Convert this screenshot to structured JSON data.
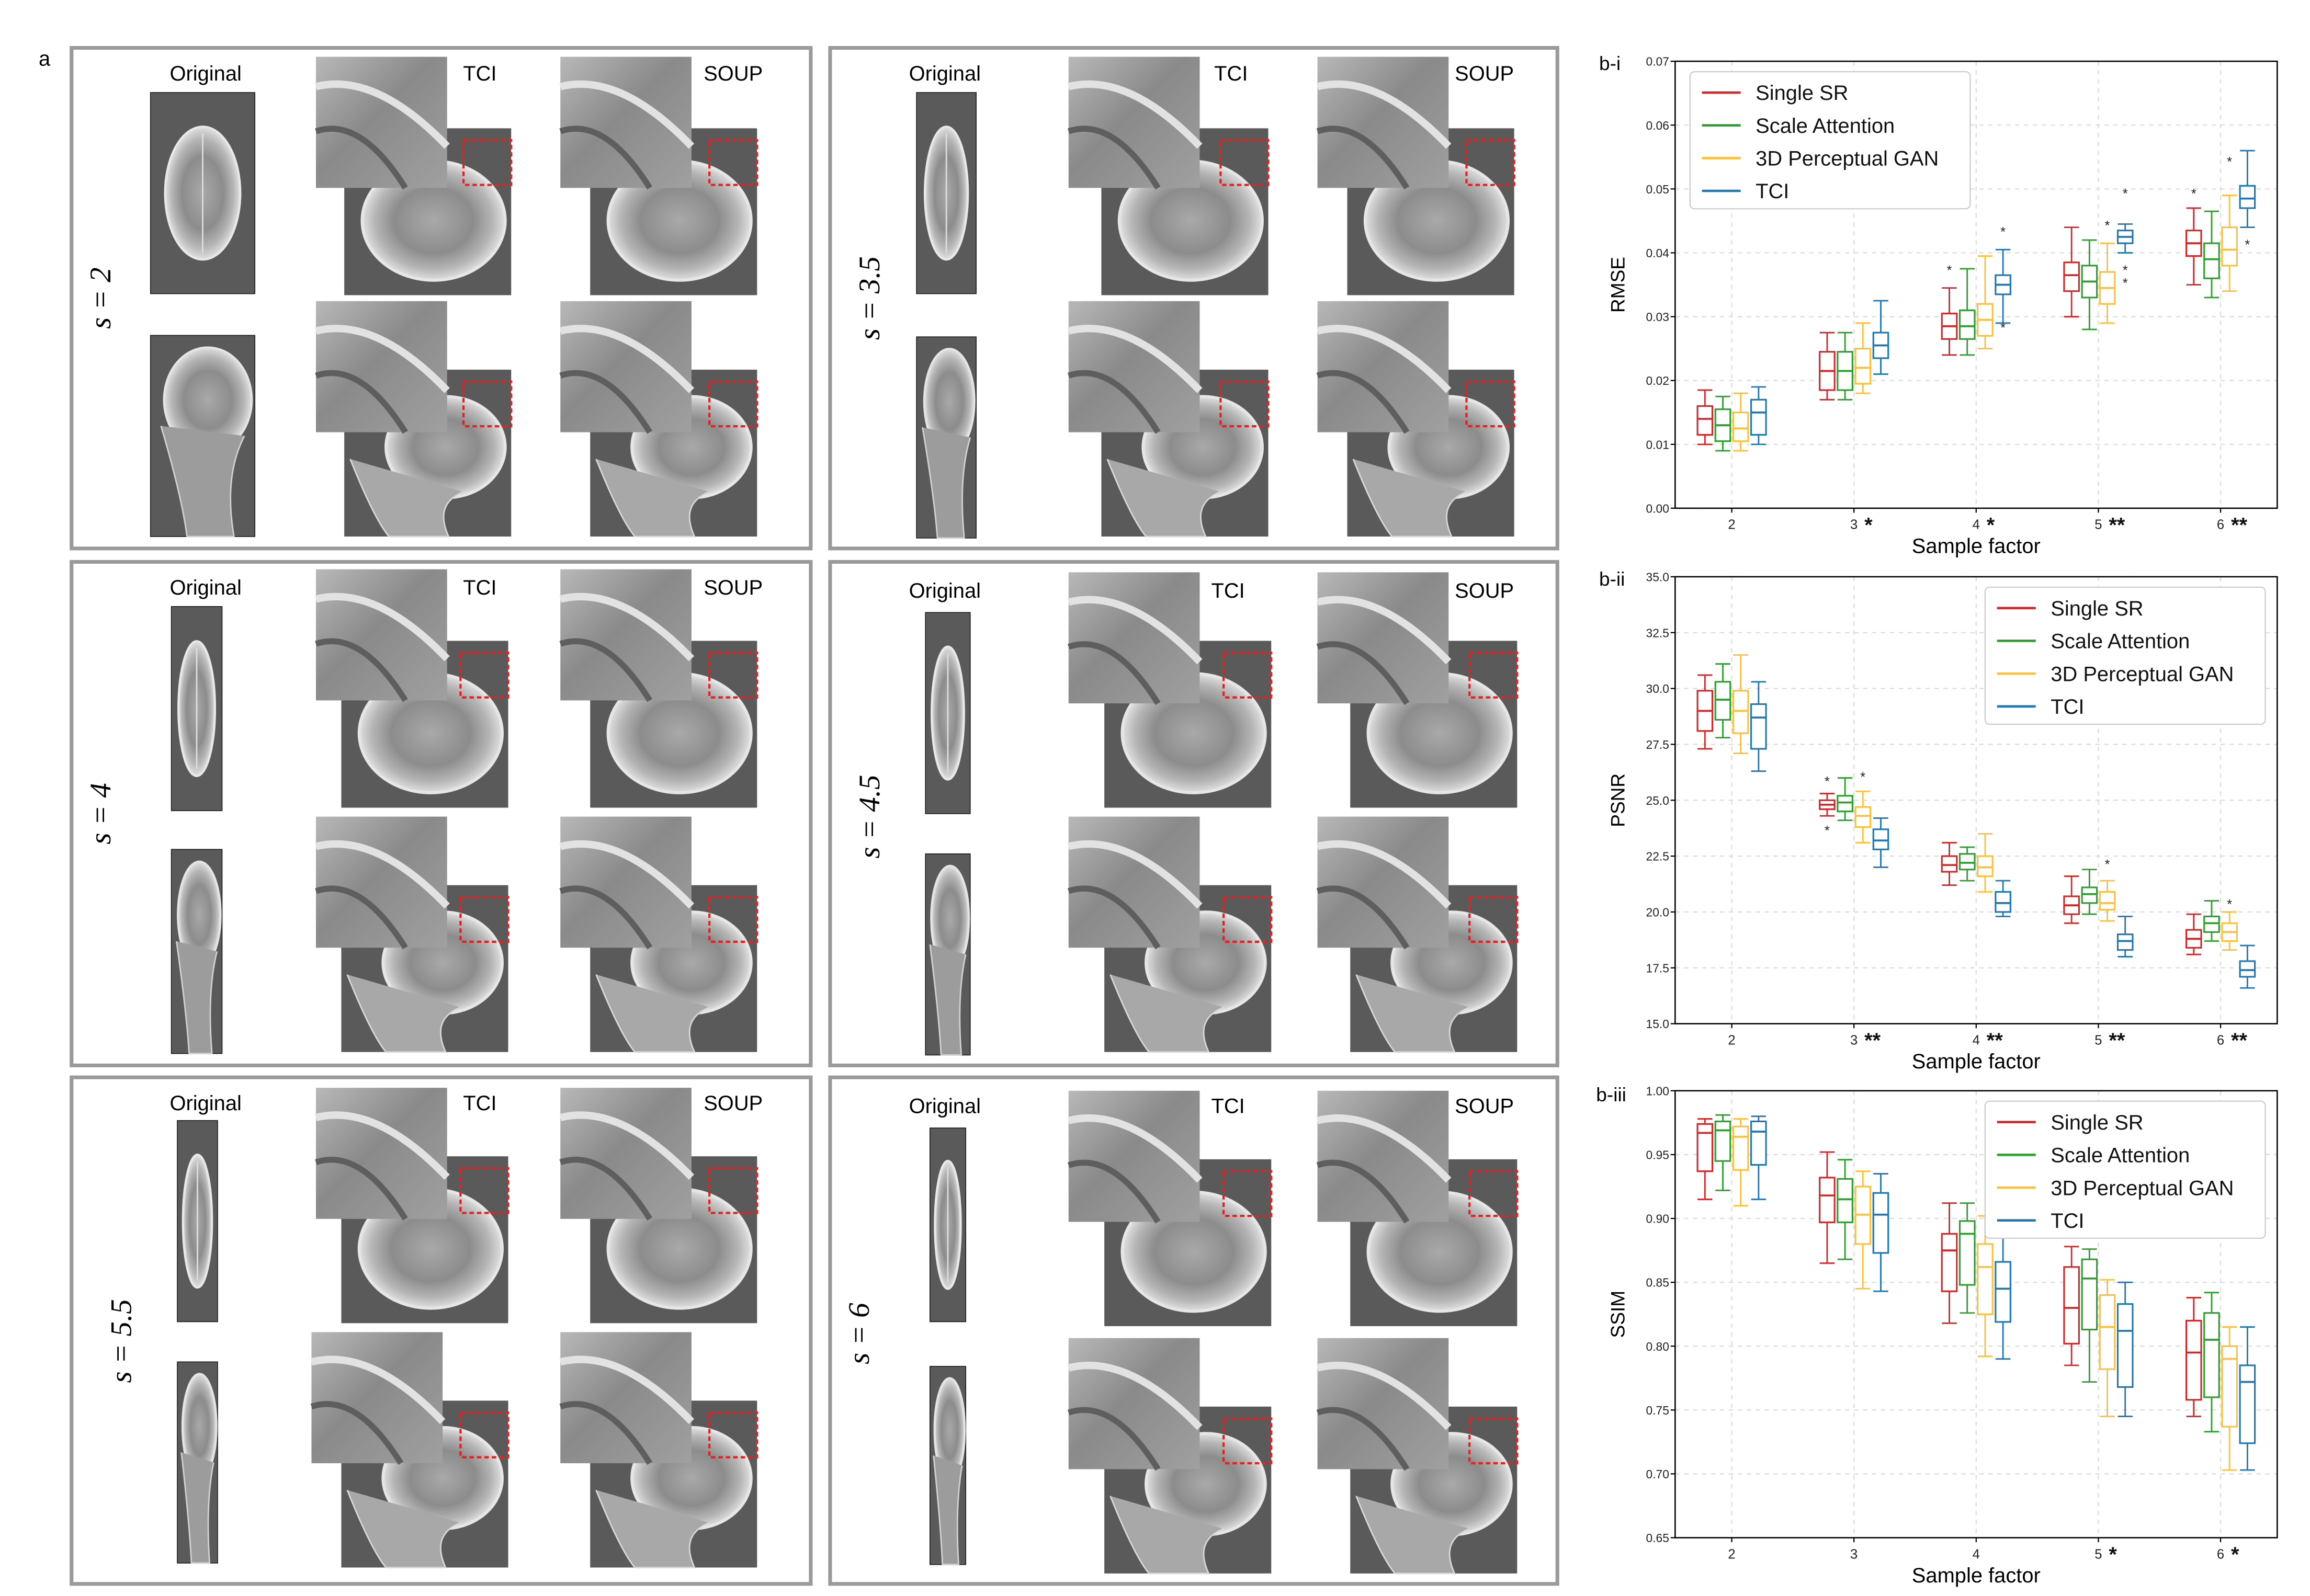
{
  "figure": {
    "panel_a_label": "a",
    "col_labels": {
      "original": "Original",
      "tci": "TCI",
      "soup": "SOUP"
    },
    "scale_prefix": "s = ",
    "scales": [
      "2",
      "3.5",
      "4",
      "4.5",
      "5.5",
      "6"
    ]
  },
  "colors": {
    "single_sr": "#d62728",
    "scale_attention": "#2ca02c",
    "perceptual_gan": "#ffbf3a",
    "tci": "#1f77b4",
    "panel_border": "#9a9a9a",
    "mri_bg": "#5a5a5a",
    "roi_box": "#e82020"
  },
  "chart_data": [
    {
      "panel_label": "b-i",
      "type": "box",
      "title": "",
      "xlabel": "Sample factor",
      "ylabel": "RMSE",
      "categories": [
        "2",
        "3",
        "4",
        "5",
        "6"
      ],
      "significance": [
        "",
        "*",
        "*",
        "**",
        "**"
      ],
      "ylim": [
        0.0,
        0.07
      ],
      "yticks": [
        "0.00",
        "0.01",
        "0.02",
        "0.03",
        "0.04",
        "0.05",
        "0.06",
        "0.07"
      ],
      "legend": [
        "Single SR",
        "Scale Attention",
        "3D Perceptual GAN",
        "TCI"
      ],
      "legend_position": "top-left",
      "series": [
        {
          "name": "Single SR",
          "boxes": [
            {
              "whislo": 0.01,
              "q1": 0.0115,
              "med": 0.014,
              "q3": 0.016,
              "whishi": 0.0185
            },
            {
              "whislo": 0.017,
              "q1": 0.0185,
              "med": 0.0215,
              "q3": 0.0245,
              "whishi": 0.0275
            },
            {
              "whislo": 0.024,
              "q1": 0.0265,
              "med": 0.0285,
              "q3": 0.0305,
              "whishi": 0.0345
            },
            {
              "whislo": 0.03,
              "q1": 0.034,
              "med": 0.0365,
              "q3": 0.0385,
              "whishi": 0.044
            },
            {
              "whislo": 0.035,
              "q1": 0.0395,
              "med": 0.0415,
              "q3": 0.0435,
              "whishi": 0.047
            }
          ]
        },
        {
          "name": "Scale Attention",
          "boxes": [
            {
              "whislo": 0.009,
              "q1": 0.0105,
              "med": 0.013,
              "q3": 0.0155,
              "whishi": 0.0175
            },
            {
              "whislo": 0.017,
              "q1": 0.0185,
              "med": 0.0215,
              "q3": 0.0245,
              "whishi": 0.0275
            },
            {
              "whislo": 0.024,
              "q1": 0.0265,
              "med": 0.0285,
              "q3": 0.031,
              "whishi": 0.0375
            },
            {
              "whislo": 0.028,
              "q1": 0.033,
              "med": 0.0355,
              "q3": 0.038,
              "whishi": 0.042
            },
            {
              "whislo": 0.033,
              "q1": 0.036,
              "med": 0.039,
              "q3": 0.0415,
              "whishi": 0.0465
            }
          ]
        },
        {
          "name": "3D Perceptual GAN",
          "boxes": [
            {
              "whislo": 0.009,
              "q1": 0.0105,
              "med": 0.0125,
              "q3": 0.015,
              "whishi": 0.018
            },
            {
              "whislo": 0.018,
              "q1": 0.0195,
              "med": 0.022,
              "q3": 0.025,
              "whishi": 0.029
            },
            {
              "whislo": 0.025,
              "q1": 0.027,
              "med": 0.0295,
              "q3": 0.032,
              "whishi": 0.0395
            },
            {
              "whislo": 0.029,
              "q1": 0.032,
              "med": 0.0345,
              "q3": 0.037,
              "whishi": 0.0415
            },
            {
              "whislo": 0.034,
              "q1": 0.038,
              "med": 0.0405,
              "q3": 0.044,
              "whishi": 0.049
            }
          ]
        },
        {
          "name": "TCI",
          "boxes": [
            {
              "whislo": 0.01,
              "q1": 0.0115,
              "med": 0.015,
              "q3": 0.017,
              "whishi": 0.019
            },
            {
              "whislo": 0.021,
              "q1": 0.0235,
              "med": 0.0255,
              "q3": 0.0275,
              "whishi": 0.0325
            },
            {
              "whislo": 0.029,
              "q1": 0.0335,
              "med": 0.035,
              "q3": 0.0365,
              "whishi": 0.0405
            },
            {
              "whislo": 0.04,
              "q1": 0.0415,
              "med": 0.0425,
              "q3": 0.0435,
              "whishi": 0.0445
            },
            {
              "whislo": 0.044,
              "q1": 0.047,
              "med": 0.0485,
              "q3": 0.0505,
              "whishi": 0.056
            }
          ]
        }
      ],
      "outliers": [
        {
          "series": 0,
          "cat": 2,
          "value": 0.0375
        },
        {
          "series": 3,
          "cat": 2,
          "value": 0.0435
        },
        {
          "series": 3,
          "cat": 2,
          "value": 0.0285
        },
        {
          "series": 2,
          "cat": 3,
          "value": 0.0445
        },
        {
          "series": 3,
          "cat": 3,
          "value": 0.0495
        },
        {
          "series": 3,
          "cat": 3,
          "value": 0.0375
        },
        {
          "series": 3,
          "cat": 3,
          "value": 0.0355
        },
        {
          "series": 0,
          "cat": 4,
          "value": 0.0495
        },
        {
          "series": 2,
          "cat": 4,
          "value": 0.0545
        },
        {
          "series": 3,
          "cat": 4,
          "value": 0.0415
        }
      ]
    },
    {
      "panel_label": "b-ii",
      "type": "box",
      "title": "",
      "xlabel": "Sample factor",
      "ylabel": "PSNR",
      "categories": [
        "2",
        "3",
        "4",
        "5",
        "6"
      ],
      "significance": [
        "",
        "**",
        "**",
        "**",
        "**"
      ],
      "ylim": [
        15.0,
        35.0
      ],
      "yticks": [
        "15.0",
        "17.5",
        "20.0",
        "22.5",
        "25.0",
        "27.5",
        "30.0",
        "32.5",
        "35.0"
      ],
      "legend": [
        "Single SR",
        "Scale Attention",
        "3D Perceptual GAN",
        "TCI"
      ],
      "legend_position": "top-right",
      "series": [
        {
          "name": "Single SR",
          "boxes": [
            {
              "whislo": 27.3,
              "q1": 28.1,
              "med": 29.0,
              "q3": 29.9,
              "whishi": 30.6
            },
            {
              "whislo": 24.3,
              "q1": 24.6,
              "med": 24.8,
              "q3": 25.0,
              "whishi": 25.3
            },
            {
              "whislo": 21.2,
              "q1": 21.8,
              "med": 22.1,
              "q3": 22.5,
              "whishi": 23.1
            },
            {
              "whislo": 19.5,
              "q1": 19.9,
              "med": 20.3,
              "q3": 20.7,
              "whishi": 21.6
            },
            {
              "whislo": 18.1,
              "q1": 18.4,
              "med": 18.8,
              "q3": 19.2,
              "whishi": 19.9
            }
          ]
        },
        {
          "name": "Scale Attention",
          "boxes": [
            {
              "whislo": 27.8,
              "q1": 28.6,
              "med": 29.5,
              "q3": 30.3,
              "whishi": 31.1
            },
            {
              "whislo": 24.1,
              "q1": 24.5,
              "med": 24.9,
              "q3": 25.2,
              "whishi": 26.0
            },
            {
              "whislo": 21.4,
              "q1": 21.9,
              "med": 22.2,
              "q3": 22.6,
              "whishi": 22.9
            },
            {
              "whislo": 19.9,
              "q1": 20.4,
              "med": 20.8,
              "q3": 21.1,
              "whishi": 21.9
            },
            {
              "whislo": 18.7,
              "q1": 19.1,
              "med": 19.5,
              "q3": 19.8,
              "whishi": 20.5
            }
          ]
        },
        {
          "name": "3D Perceptual GAN",
          "boxes": [
            {
              "whislo": 27.1,
              "q1": 28.0,
              "med": 29.0,
              "q3": 29.9,
              "whishi": 31.5
            },
            {
              "whislo": 23.1,
              "q1": 23.8,
              "med": 24.3,
              "q3": 24.7,
              "whishi": 25.4
            },
            {
              "whislo": 20.9,
              "q1": 21.6,
              "med": 22.0,
              "q3": 22.5,
              "whishi": 23.5
            },
            {
              "whislo": 19.6,
              "q1": 20.1,
              "med": 20.4,
              "q3": 20.9,
              "whishi": 21.4
            },
            {
              "whislo": 18.3,
              "q1": 18.7,
              "med": 19.1,
              "q3": 19.5,
              "whishi": 20.0
            }
          ]
        },
        {
          "name": "TCI",
          "boxes": [
            {
              "whislo": 26.3,
              "q1": 27.3,
              "med": 28.7,
              "q3": 29.3,
              "whishi": 30.3
            },
            {
              "whislo": 22.0,
              "q1": 22.8,
              "med": 23.2,
              "q3": 23.7,
              "whishi": 24.2
            },
            {
              "whislo": 19.8,
              "q1": 20.0,
              "med": 20.4,
              "q3": 20.9,
              "whishi": 21.4
            },
            {
              "whislo": 18.0,
              "q1": 18.3,
              "med": 18.7,
              "q3": 19.0,
              "whishi": 19.8
            },
            {
              "whislo": 16.6,
              "q1": 17.1,
              "med": 17.4,
              "q3": 17.8,
              "whishi": 18.5
            }
          ]
        }
      ],
      "outliers": [
        {
          "series": 0,
          "cat": 1,
          "value": 25.9
        },
        {
          "series": 0,
          "cat": 1,
          "value": 23.7
        },
        {
          "series": 2,
          "cat": 1,
          "value": 26.1
        },
        {
          "series": 2,
          "cat": 3,
          "value": 22.2
        },
        {
          "series": 2,
          "cat": 4,
          "value": 20.4
        }
      ]
    },
    {
      "panel_label": "b-iii",
      "type": "box",
      "title": "",
      "xlabel": "Sample factor",
      "ylabel": "SSIM",
      "categories": [
        "2",
        "3",
        "4",
        "5",
        "6"
      ],
      "significance": [
        "",
        "",
        "",
        "*",
        "*"
      ],
      "ylim": [
        0.65,
        1.0
      ],
      "yticks": [
        "0.65",
        "0.70",
        "0.75",
        "0.80",
        "0.85",
        "0.90",
        "0.95",
        "1.00"
      ],
      "legend": [
        "Single SR",
        "Scale Attention",
        "3D Perceptual GAN",
        "TCI"
      ],
      "legend_position": "top-right",
      "series": [
        {
          "name": "Single SR",
          "boxes": [
            {
              "whislo": 0.915,
              "q1": 0.937,
              "med": 0.967,
              "q3": 0.974,
              "whishi": 0.978
            },
            {
              "whislo": 0.865,
              "q1": 0.897,
              "med": 0.918,
              "q3": 0.932,
              "whishi": 0.952
            },
            {
              "whislo": 0.818,
              "q1": 0.843,
              "med": 0.875,
              "q3": 0.888,
              "whishi": 0.912
            },
            {
              "whislo": 0.785,
              "q1": 0.802,
              "med": 0.83,
              "q3": 0.862,
              "whishi": 0.878
            },
            {
              "whislo": 0.745,
              "q1": 0.758,
              "med": 0.795,
              "q3": 0.82,
              "whishi": 0.838
            }
          ]
        },
        {
          "name": "Scale Attention",
          "boxes": [
            {
              "whislo": 0.922,
              "q1": 0.945,
              "med": 0.969,
              "q3": 0.976,
              "whishi": 0.981
            },
            {
              "whislo": 0.868,
              "q1": 0.897,
              "med": 0.915,
              "q3": 0.931,
              "whishi": 0.946
            },
            {
              "whislo": 0.826,
              "q1": 0.848,
              "med": 0.888,
              "q3": 0.898,
              "whishi": 0.912
            },
            {
              "whislo": 0.772,
              "q1": 0.813,
              "med": 0.853,
              "q3": 0.868,
              "whishi": 0.876
            },
            {
              "whislo": 0.733,
              "q1": 0.76,
              "med": 0.805,
              "q3": 0.826,
              "whishi": 0.842
            }
          ]
        },
        {
          "name": "3D Perceptual GAN",
          "boxes": [
            {
              "whislo": 0.91,
              "q1": 0.938,
              "med": 0.964,
              "q3": 0.972,
              "whishi": 0.978
            },
            {
              "whislo": 0.845,
              "q1": 0.88,
              "med": 0.903,
              "q3": 0.925,
              "whishi": 0.937
            },
            {
              "whislo": 0.792,
              "q1": 0.825,
              "med": 0.862,
              "q3": 0.88,
              "whishi": 0.902
            },
            {
              "whislo": 0.745,
              "q1": 0.782,
              "med": 0.815,
              "q3": 0.84,
              "whishi": 0.852
            },
            {
              "whislo": 0.703,
              "q1": 0.737,
              "med": 0.79,
              "q3": 0.8,
              "whishi": 0.815
            }
          ]
        },
        {
          "name": "TCI",
          "boxes": [
            {
              "whislo": 0.915,
              "q1": 0.942,
              "med": 0.968,
              "q3": 0.976,
              "whishi": 0.98
            },
            {
              "whislo": 0.843,
              "q1": 0.873,
              "med": 0.903,
              "q3": 0.92,
              "whishi": 0.935
            },
            {
              "whislo": 0.79,
              "q1": 0.819,
              "med": 0.845,
              "q3": 0.866,
              "whishi": 0.886
            },
            {
              "whislo": 0.745,
              "q1": 0.768,
              "med": 0.812,
              "q3": 0.833,
              "whishi": 0.85
            },
            {
              "whislo": 0.703,
              "q1": 0.724,
              "med": 0.772,
              "q3": 0.785,
              "whishi": 0.815
            }
          ]
        }
      ],
      "outliers": []
    }
  ]
}
